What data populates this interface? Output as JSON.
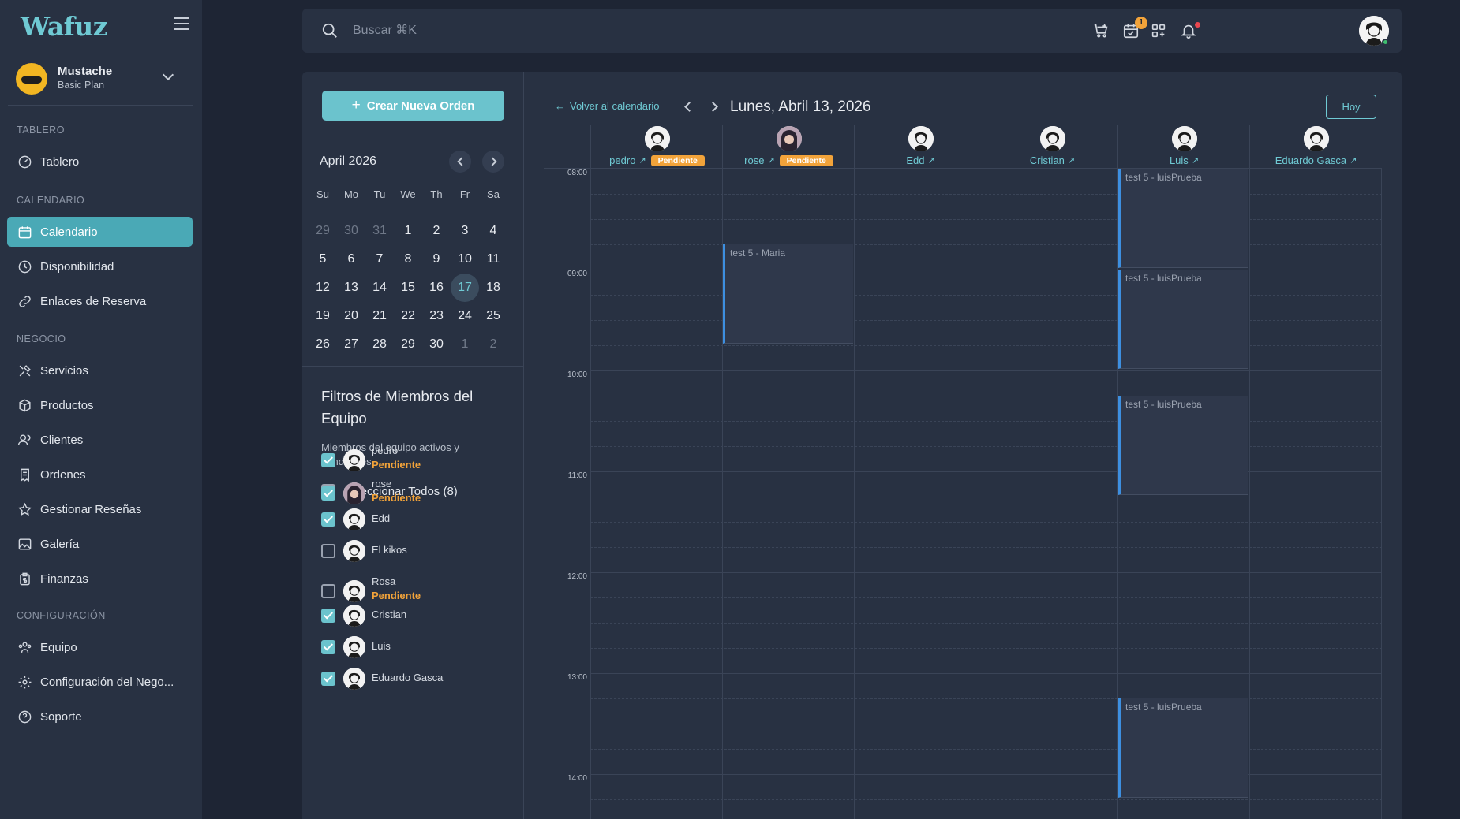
{
  "brand": {
    "logo": "Wafuz"
  },
  "account": {
    "name": "Mustache",
    "plan": "Basic Plan"
  },
  "sidebar": {
    "sections": [
      {
        "label": "TABLERO",
        "items": [
          {
            "label": "Tablero",
            "icon": "gauge-icon"
          }
        ]
      },
      {
        "label": "CALENDARIO",
        "items": [
          {
            "label": "Calendario",
            "icon": "calendar-icon",
            "active": true
          },
          {
            "label": "Disponibilidad",
            "icon": "clock-icon"
          },
          {
            "label": "Enlaces de Reserva",
            "icon": "link-icon"
          }
        ]
      },
      {
        "label": "NEGOCIO",
        "items": [
          {
            "label": "Servicios",
            "icon": "tools-icon"
          },
          {
            "label": "Productos",
            "icon": "box-icon"
          },
          {
            "label": "Clientes",
            "icon": "users-icon"
          },
          {
            "label": "Ordenes",
            "icon": "receipt-icon"
          },
          {
            "label": "Gestionar Reseñas",
            "icon": "star-icon"
          },
          {
            "label": "Galería",
            "icon": "image-icon"
          },
          {
            "label": "Finanzas",
            "icon": "finance-icon"
          }
        ]
      },
      {
        "label": "CONFIGURACIÓN",
        "items": [
          {
            "label": "Equipo",
            "icon": "team-icon"
          },
          {
            "label": "Configuración del Nego...",
            "icon": "gear-icon"
          },
          {
            "label": "Soporte",
            "icon": "help-icon"
          }
        ]
      }
    ]
  },
  "topbar": {
    "search_placeholder": "Buscar ⌘K",
    "calendar_badge": "1"
  },
  "create_button": {
    "label": "Crear Nueva Orden"
  },
  "mini_calendar": {
    "title": "April 2026",
    "weekdays": [
      "Su",
      "Mo",
      "Tu",
      "We",
      "Th",
      "Fr",
      "Sa"
    ],
    "weeks": [
      [
        "29",
        "30",
        "31",
        "1",
        "2",
        "3",
        "4"
      ],
      [
        "5",
        "6",
        "7",
        "8",
        "9",
        "10",
        "11"
      ],
      [
        "12",
        "13",
        "14",
        "15",
        "16",
        "17",
        "18"
      ],
      [
        "19",
        "20",
        "21",
        "22",
        "23",
        "24",
        "25"
      ],
      [
        "26",
        "27",
        "28",
        "29",
        "30",
        "1",
        "2"
      ]
    ],
    "today": "17"
  },
  "filters": {
    "title": "Filtros de Miembros del Equipo",
    "subtitle": "Miembros del equipo activos y pendientes",
    "select_all": "Seleccionar Todos (8)",
    "members": [
      {
        "name": "pedro",
        "status": "Pendiente",
        "checked": true
      },
      {
        "name": "rose",
        "status": "Pendiente",
        "checked": true
      },
      {
        "name": "Edd",
        "status": "",
        "checked": true
      },
      {
        "name": "El kikos",
        "status": "",
        "checked": false
      },
      {
        "name": "Rosa",
        "status": "Pendiente",
        "checked": false
      },
      {
        "name": "Cristian",
        "status": "",
        "checked": true
      },
      {
        "name": "Luis",
        "status": "",
        "checked": true
      },
      {
        "name": "Eduardo Gasca",
        "status": "",
        "checked": true
      }
    ]
  },
  "day_view": {
    "back_label": "Volver al calendario",
    "title": "Lunes, Abril 13, 2026",
    "today_button": "Hoy",
    "columns": [
      {
        "name": "pedro",
        "pill": "Pendiente"
      },
      {
        "name": "rose",
        "pill": "Pendiente"
      },
      {
        "name": "Edd",
        "pill": ""
      },
      {
        "name": "Cristian",
        "pill": ""
      },
      {
        "name": "Luis",
        "pill": ""
      },
      {
        "name": "Eduardo Gasca",
        "pill": ""
      }
    ],
    "hours": [
      "08:00",
      "09:00",
      "10:00",
      "11:00",
      "12:00",
      "13:00",
      "14:00"
    ],
    "events": [
      {
        "title": "test 5 - Maria",
        "column": 1,
        "start": "08:45",
        "end": "09:45"
      },
      {
        "title": "test 5 - luisPrueba",
        "column": 4,
        "start": "08:00",
        "end": "09:00"
      },
      {
        "title": "test 5 - luisPrueba",
        "column": 4,
        "start": "09:00",
        "end": "10:00"
      },
      {
        "title": "test 5 - luisPrueba",
        "column": 4,
        "start": "10:15",
        "end": "11:15"
      },
      {
        "title": "test 5 - luisPrueba",
        "column": 4,
        "start": "13:15",
        "end": "14:15"
      }
    ]
  }
}
